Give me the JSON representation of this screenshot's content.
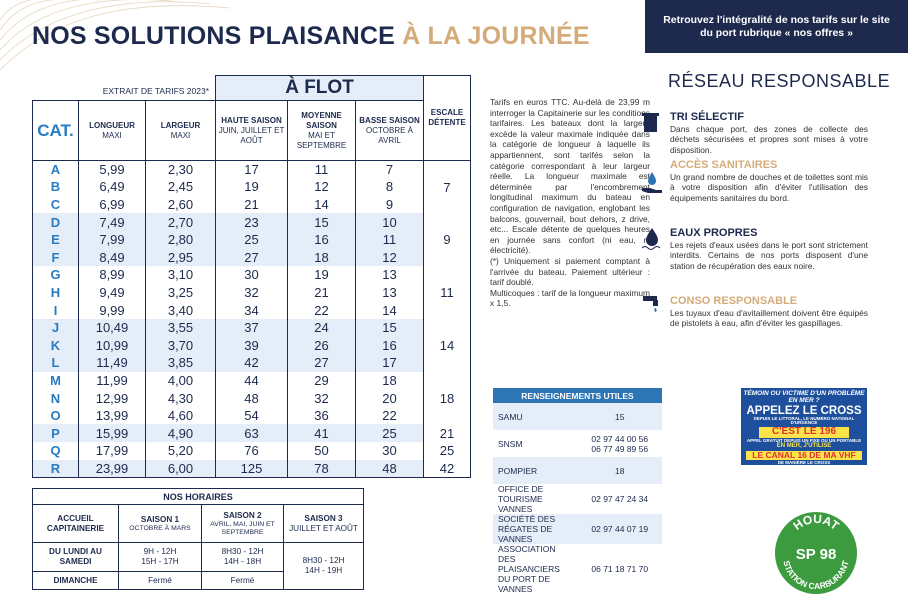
{
  "header": {
    "title": "NOS SOLUTIONS PLAISANCE",
    "title_highlight": "À LA JOURNÉE",
    "banner": "Retrouvez l'intégralité de nos tarifs sur le site du port rubrique « nos offres »"
  },
  "tariffs": {
    "caption": "EXTRAIT DE TARIFS 2023*",
    "group": "À FLOT",
    "columns": [
      {
        "title": "CAT."
      },
      {
        "title": "LONGUEUR",
        "sub": "MAXI"
      },
      {
        "title": "LARGEUR",
        "sub": "MAXI"
      },
      {
        "title": "HAUTE SAISON",
        "sub": "JUIN, JUILLET ET AOÛT"
      },
      {
        "title": "MOYENNE SAISON",
        "sub": "MAI ET SEPTEMBRE"
      },
      {
        "title": "BASSE SAISON",
        "sub": "OCTOBRE À AVRIL"
      },
      {
        "title": "ESCALE DÉTENTE"
      }
    ],
    "rows": [
      [
        "A",
        "5,99",
        "2,30",
        "17",
        "11",
        "7",
        "7"
      ],
      [
        "B",
        "6,49",
        "2,45",
        "19",
        "12",
        "8"
      ],
      [
        "C",
        "6,99",
        "2,60",
        "21",
        "14",
        "9"
      ],
      [
        "D",
        "7,49",
        "2,70",
        "23",
        "15",
        "10",
        "9"
      ],
      [
        "E",
        "7,99",
        "2,80",
        "25",
        "16",
        "11"
      ],
      [
        "F",
        "8,49",
        "2,95",
        "27",
        "18",
        "12"
      ],
      [
        "G",
        "8,99",
        "3,10",
        "30",
        "19",
        "13",
        "11"
      ],
      [
        "H",
        "9,49",
        "3,25",
        "32",
        "21",
        "13"
      ],
      [
        "I",
        "9,99",
        "3,40",
        "34",
        "22",
        "14"
      ],
      [
        "J",
        "10,49",
        "3,55",
        "37",
        "24",
        "15",
        "14"
      ],
      [
        "K",
        "10,99",
        "3,70",
        "39",
        "26",
        "16"
      ],
      [
        "L",
        "11,49",
        "3,85",
        "42",
        "27",
        "17"
      ],
      [
        "M",
        "11,99",
        "4,00",
        "44",
        "29",
        "18",
        "18"
      ],
      [
        "N",
        "12,99",
        "4,30",
        "48",
        "32",
        "20"
      ],
      [
        "O",
        "13,99",
        "4,60",
        "54",
        "36",
        "22"
      ],
      [
        "P",
        "15,99",
        "4,90",
        "63",
        "41",
        "25",
        "21"
      ],
      [
        "Q",
        "17,99",
        "5,20",
        "76",
        "50",
        "30",
        "25"
      ],
      [
        "R",
        "23,99",
        "6,00",
        "125",
        "78",
        "48",
        "42"
      ]
    ]
  },
  "notes": [
    "Tarifs en euros TTC. Au-delà de 23,99 m interroger la Capitainerie sur les conditions tarifaires. Les bateaux dont la largeur excède la valeur maximale indiquée dans la catégorie de longueur à laquelle ils appartiennent, sont tarifés selon la catégorie correspondant à leur largeur réelle. La longueur maximale est déterminée par l'encombrement longitudinal maximum du bateau en configuration de navigation, englobant les balcons, gouvernail, bout dehors, z drive, etc... Escale détente de quelques heures en journée sans confort (ni eau, ni électricité).",
    "(*) Uniquement si paiement comptant à l'arrivée du bateau. Paiement ultérieur : tarif doublé.",
    "Multicoques : tarif de la longueur maximum x 1,5."
  ],
  "reseau": {
    "title": "RÉSEAU RESPONSABLE",
    "items": [
      {
        "heading": "TRI SÉLECTIF",
        "text": "Dans chaque port, des zones de collecte des déchets sécurisées et propres sont mises à votre disposition."
      },
      {
        "heading": "ACCÈS SANITAIRES",
        "text": "Un grand nombre de douches et de toilettes sont mis à votre disposition afin d'éviter l'utilisation des équipements sanitaires du bord."
      },
      {
        "heading": "EAUX PROPRES",
        "text": "Les rejets d'eaux usées dans le port sont strictement interdits. Certains de nos ports disposent d'une station de récupération des eaux noire."
      },
      {
        "heading": "CONSO RESPONSABLE",
        "text": "Les tuyaux d'eau d'avitaillement doivent être équipés de pistolets à eau, afin d'éviter les gaspillages."
      }
    ]
  },
  "contacts": {
    "title": "RENSEIGNEMENTS UTILES",
    "rows": [
      [
        "SAMU",
        [
          "15"
        ]
      ],
      [
        "SNSM",
        [
          "02 97 44 00 56",
          "06 77 49 89 56"
        ]
      ],
      [
        "POMPIER",
        [
          "18"
        ]
      ],
      [
        "OFFICE DE TOURISME VANNES",
        [
          "02 97 47 24 34"
        ]
      ],
      [
        "SOCIÉTÉ DES RÉGATES DE VANNES",
        [
          "02 97 44 07 19"
        ]
      ],
      [
        "ASSOCIATION DES PLAISANCIERS DU PORT DE VANNES",
        [
          "06 71 18 71 70"
        ]
      ]
    ]
  },
  "horaires": {
    "title": "NOS HORAIRES",
    "header": [
      {
        "title": "ACCUEIL CAPITAINERIE"
      },
      {
        "title": "SAISON 1",
        "sub": "OCTOBRE À MARS"
      },
      {
        "title": "SAISON 2",
        "sub": "AVRIL, MAI, JUIN ET SEPTEMBRE"
      },
      {
        "title": "SAISON 3",
        "sub": "JUILLET ET AOÛT"
      }
    ],
    "rows": [
      [
        "DU LUNDI AU SAMEDI",
        "9H - 12H 15H - 17H",
        "8H30 - 12H 14H - 18H",
        "8H30 - 12H 14H - 19H"
      ],
      [
        "DIMANCHE",
        "Fermé",
        "Fermé"
      ]
    ]
  },
  "cross": {
    "question": "TÉMOIN OU VICTIME D'UN PROBLÈME EN MER ?",
    "call": "APPELEZ LE CROSS",
    "line1": "DEPUIS LE LITTORAL, LE NUMÉRO NATIONAL D'URGENCE",
    "number": "C'EST LE 196",
    "line2": "APPEL GRATUIT DEPUIS UN FIXE OU UN PORTABLE",
    "line3": "EN MER, J'UTILISE",
    "vhf": "LE CANAL 16 DE MA VHF",
    "line4": "DE MANIÈRE LE CROSS"
  },
  "station": {
    "top": "HOUAT",
    "fuel": "SP 98",
    "bottom": "STATION CARBURANT"
  }
}
